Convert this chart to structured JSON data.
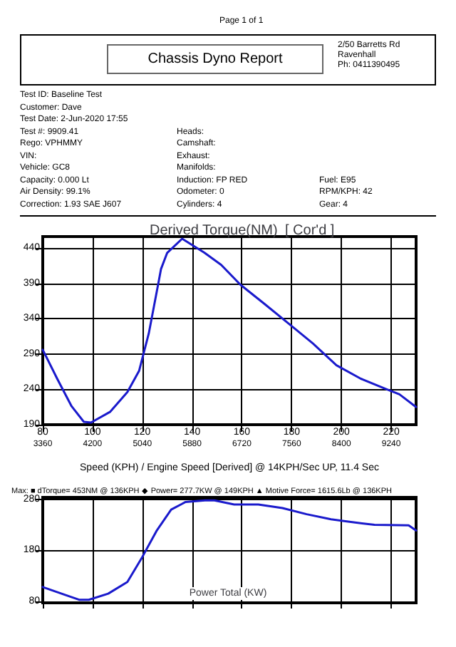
{
  "chart_data": [
    {
      "type": "other",
      "title": "Chassis Dyno Report",
      "annotations": [
        "Page 1 of 1",
        "2/50 Barretts Rd",
        "Ravenhall",
        "Ph: 0411390495",
        "Test ID: Baseline Test",
        "Customer: Dave",
        "Test Date: 2-Jun-2020 17:55",
        "Test #: 9909.41",
        "Rego: VPHMMY",
        "VIN:",
        "Vehicle: GC8",
        "Capacity: 0.000 Lt",
        "Air Density: 99.1%",
        "Correction: 1.93 SAE J607",
        "Heads:",
        "Camshaft:",
        "Exhaust:",
        "Manifolds:",
        "Induction: FP RED",
        "Odometer: 0",
        "Cylinders: 4",
        "Fuel: E95",
        "RPM/KPH: 42",
        "Gear: 4"
      ]
    },
    {
      "type": "line",
      "title": "Derived Torque(NM)",
      "subtitle": "[ Cor'd ]",
      "xlabel": "Speed (KPH) / Engine Speed [Derived] @ 14KPH/Sec UP, 11.4 Sec",
      "annotations": [
        "Max: ■ dTorque= 453NM @ 136KPH ◆ Power= 277.7KW @ 149KPH ▲ Motive Force= 1615.6Lb @ 136KPH"
      ],
      "x": [
        80,
        85.8,
        91.6,
        96.5,
        99.4,
        107,
        114,
        118.7,
        122.6,
        126.5,
        127.5,
        130,
        136,
        145,
        151.7,
        159.4,
        169,
        178.8,
        188.5,
        198,
        207.8,
        217.5,
        223.3,
        230
      ],
      "series": [
        {
          "color": "#1a1acc",
          "values": [
            296,
            255,
            216,
            194,
            193,
            208,
            236,
            266,
            319,
            391,
            410,
            433,
            453,
            433,
            416,
            388,
            361,
            333,
            305,
            274,
            255,
            241,
            233,
            215
          ]
        }
      ],
      "xlim": [
        80,
        230
      ],
      "xticks": [
        80,
        100,
        120,
        140,
        160,
        180,
        200,
        220
      ],
      "x2lim": [
        3360,
        9660
      ],
      "x2ticks": [
        3360,
        4200,
        5040,
        5880,
        6720,
        7560,
        8400,
        9240
      ],
      "ylim": [
        190,
        456
      ],
      "yticks": [
        190,
        240,
        290,
        340,
        390,
        440
      ],
      "grid": true,
      "marker": "none",
      "line_style": "solid"
    },
    {
      "type": "line",
      "title": "Power Total (KW)",
      "x": [
        80,
        88.8,
        94.6,
        98.5,
        106.3,
        114,
        120,
        125.7,
        131.6,
        137.4,
        145.2,
        149,
        156.9,
        166.6,
        176.3,
        186,
        195.8,
        201.6,
        213.3,
        227,
        230
      ],
      "series": [
        {
          "color": "#1a1acc",
          "values": [
            108,
            93,
            83,
            83,
            95,
            118,
            167,
            218,
            260,
            275,
            278,
            278,
            270,
            270,
            263,
            251,
            241,
            237,
            230,
            229,
            219
          ]
        }
      ],
      "xlim": [
        80,
        230
      ],
      "xticks": [
        80,
        100,
        120,
        140,
        160,
        180,
        200,
        220
      ],
      "ylim": [
        77,
        284
      ],
      "yticks": [
        80,
        180,
        280
      ],
      "tick_labels": "y",
      "grid": true,
      "marker": "none",
      "line_style": "solid"
    }
  ]
}
